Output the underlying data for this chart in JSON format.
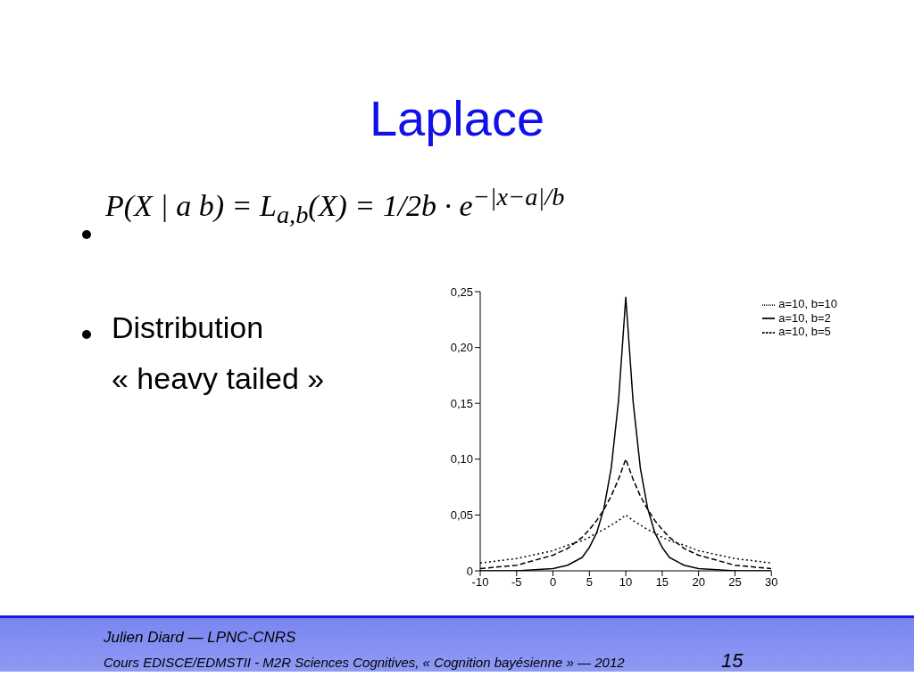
{
  "chart_data": {
    "type": "line",
    "title": "Laplace",
    "annotations": [
      "P(X | a b) = L$_{a,b}$(X) = 1/2b · e$^{−|x−a|/b}$",
      "Distribution",
      "« heavy tailed »",
      "Julien Diard — LPNC-CNRS",
      "Cours EDISCE/EDMSTII - M2R Sciences Cognitives, « Cognition bayésienne » — 2012",
      "15"
    ],
    "x": [
      -10,
      -5,
      0,
      2,
      4,
      5,
      6,
      7,
      8,
      9,
      10,
      11,
      12,
      13,
      14,
      15,
      16,
      18,
      20,
      25,
      30
    ],
    "series": [
      {
        "name": "a=10, b=2",
        "color": "#000000",
        "line_style": "solid",
        "values": [
          0,
          0,
          0.002,
          0.005,
          0.012,
          0.021,
          0.034,
          0.056,
          0.092,
          0.152,
          0.245,
          0.152,
          0.092,
          0.056,
          0.034,
          0.021,
          0.012,
          0.005,
          0.002,
          0,
          0
        ]
      },
      {
        "name": "a=10, b=5",
        "color": "#000000",
        "line_style": "dashed",
        "values": [
          0.002,
          0.005,
          0.014,
          0.02,
          0.03,
          0.037,
          0.045,
          0.055,
          0.067,
          0.082,
          0.1,
          0.082,
          0.067,
          0.055,
          0.045,
          0.037,
          0.03,
          0.02,
          0.014,
          0.005,
          0.002
        ]
      },
      {
        "name": "a=10, b=10",
        "color": "#000000",
        "line_style": "dotted",
        "values": [
          0.007,
          0.011,
          0.018,
          0.023,
          0.027,
          0.03,
          0.034,
          0.037,
          0.041,
          0.045,
          0.05,
          0.045,
          0.041,
          0.037,
          0.034,
          0.03,
          0.027,
          0.023,
          0.018,
          0.011,
          0.007
        ]
      }
    ],
    "xlim": [
      -10,
      30
    ],
    "xticks": [
      -10,
      -5,
      0,
      5,
      10,
      15,
      20,
      25,
      30
    ],
    "ylim": [
      0,
      0.25
    ],
    "yticks": [
      0,
      {
        "value": 0.05,
        "label": "0,05"
      },
      {
        "value": 0.1,
        "label": "0,10"
      },
      {
        "value": 0.15,
        "label": "0,15"
      },
      {
        "value": 0.2,
        "label": "0,20"
      },
      {
        "value": 0.25,
        "label": "0,25"
      }
    ],
    "legend": "top right",
    "grid": false,
    "marker": "none"
  }
}
